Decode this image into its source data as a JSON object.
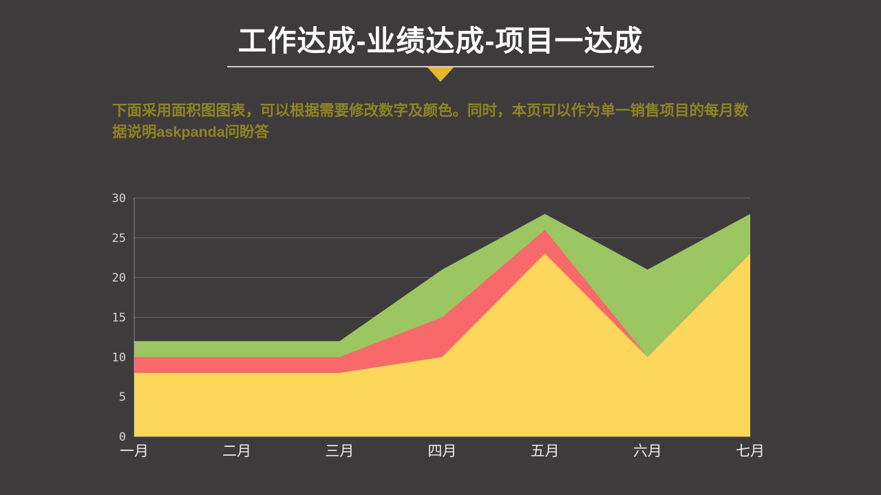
{
  "header": {
    "title": "工作达成-业绩达成-项目一达成"
  },
  "description": "下面采用面积图图表，可以根据需要修改数字及颜色。同时，本页可以作为单一销售项目的每月数据说明askpanda问盼答",
  "chart_data": {
    "type": "area",
    "title": "",
    "categories": [
      "一月",
      "二月",
      "三月",
      "四月",
      "五月",
      "六月",
      "七月"
    ],
    "series": [
      {
        "name": "green",
        "color": "#9BC662",
        "values": [
          12,
          12,
          12,
          21,
          28,
          21,
          28
        ]
      },
      {
        "name": "red",
        "color": "#F8696B",
        "values": [
          10,
          10,
          10,
          15,
          26,
          10,
          23
        ]
      },
      {
        "name": "yellow",
        "color": "#FCD75A",
        "values": [
          8,
          8,
          8,
          10,
          23,
          10,
          23
        ]
      }
    ],
    "xlabel": "",
    "ylabel": "",
    "ylim": [
      0,
      30
    ],
    "yticks": [
      0,
      5,
      10,
      15,
      20,
      25,
      30
    ],
    "grid": true,
    "legend": "none",
    "overlap": true
  },
  "colors": {
    "background": "#3d3b3b",
    "title_text": "#ffffff",
    "accent_triangle": "#E9B52F",
    "description_text": "#8F8424",
    "axis_text": "#d6d6d6",
    "gridline": "#6a6866"
  }
}
